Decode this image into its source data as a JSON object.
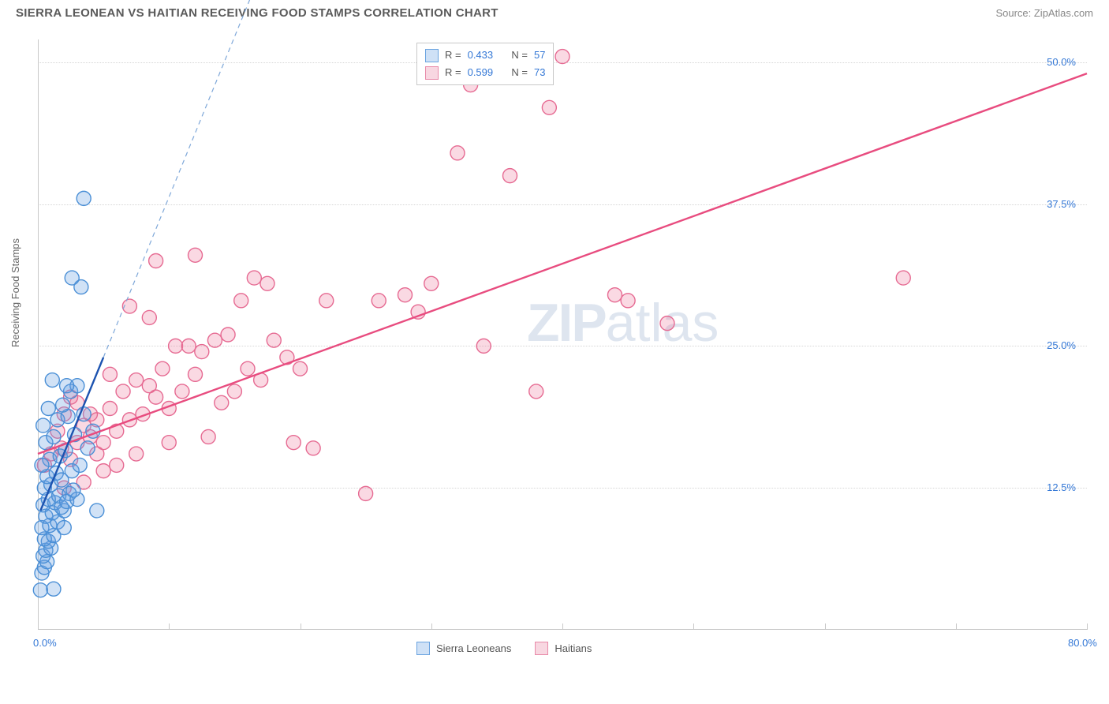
{
  "title": "SIERRA LEONEAN VS HAITIAN RECEIVING FOOD STAMPS CORRELATION CHART",
  "source": "Source: ZipAtlas.com",
  "watermark": {
    "bold": "ZIP",
    "rest": "atlas"
  },
  "y_axis_label": "Receiving Food Stamps",
  "stats": {
    "series1": {
      "r_label": "R =",
      "r": "0.433",
      "n_label": "N =",
      "n": "57"
    },
    "series2": {
      "r_label": "R =",
      "r": "0.599",
      "n_label": "N =",
      "n": "73"
    }
  },
  "legend": {
    "series1_label": "Sierra Leoneans",
    "series2_label": "Haitians"
  },
  "colors": {
    "series1_fill": "rgba(102,158,224,0.30)",
    "series1_stroke": "#4a8fd6",
    "series1_trend": "#1c53b0",
    "series1_trend_dash": "#7fa8d9",
    "series2_fill": "rgba(236,120,155,0.28)",
    "series2_stroke": "#e66a92",
    "series2_trend": "#e84c7f",
    "axis_label": "#3478d6",
    "grid": "#d6d6d6",
    "text": "#666666",
    "swatch1_fill": "#cfe1f6",
    "swatch1_border": "#6aa3e0",
    "swatch2_fill": "#f8d7e1",
    "swatch2_border": "#e88aa9"
  },
  "chart": {
    "type": "scatter",
    "xlim": [
      0,
      80
    ],
    "ylim": [
      0,
      52
    ],
    "x_ticks": [
      0,
      10,
      20,
      30,
      40,
      50,
      60,
      70,
      80
    ],
    "x_tick_labels": {
      "0": "0.0%",
      "80": "80.0%"
    },
    "y_grid": [
      12.5,
      25.0,
      37.5,
      50.0
    ],
    "y_tick_labels": [
      "12.5%",
      "25.0%",
      "37.5%",
      "50.0%"
    ],
    "marker_radius": 9,
    "marker_stroke_width": 1.4,
    "trend_width_solid": 2.4,
    "trend_width_dash": 1.2
  },
  "series1_points": [
    [
      0.2,
      3.5
    ],
    [
      1.2,
      3.6
    ],
    [
      0.3,
      5.0
    ],
    [
      0.5,
      5.5
    ],
    [
      0.7,
      6.0
    ],
    [
      0.4,
      6.5
    ],
    [
      0.6,
      7.0
    ],
    [
      1.0,
      7.2
    ],
    [
      0.8,
      7.8
    ],
    [
      0.5,
      8.0
    ],
    [
      1.2,
      8.3
    ],
    [
      0.3,
      9.0
    ],
    [
      0.9,
      9.2
    ],
    [
      1.5,
      9.5
    ],
    [
      0.6,
      10.0
    ],
    [
      1.1,
      10.3
    ],
    [
      2.0,
      10.5
    ],
    [
      0.4,
      11.0
    ],
    [
      1.3,
      11.2
    ],
    [
      0.8,
      11.5
    ],
    [
      1.6,
      11.8
    ],
    [
      2.4,
      12.0
    ],
    [
      0.5,
      12.5
    ],
    [
      1.0,
      12.8
    ],
    [
      1.8,
      10.8
    ],
    [
      2.2,
      11.3
    ],
    [
      3.0,
      11.5
    ],
    [
      0.7,
      13.5
    ],
    [
      1.4,
      13.8
    ],
    [
      2.6,
      14.0
    ],
    [
      0.9,
      15.0
    ],
    [
      1.7,
      15.3
    ],
    [
      2.1,
      15.8
    ],
    [
      3.2,
      14.5
    ],
    [
      0.6,
      16.5
    ],
    [
      1.2,
      17.0
    ],
    [
      2.8,
      17.2
    ],
    [
      0.4,
      18.0
    ],
    [
      1.5,
      18.5
    ],
    [
      2.3,
      18.8
    ],
    [
      3.5,
      19.0
    ],
    [
      0.8,
      19.5
    ],
    [
      1.9,
      19.8
    ],
    [
      2.5,
      21.0
    ],
    [
      3.8,
      16.0
    ],
    [
      4.2,
      17.5
    ],
    [
      3.0,
      21.5
    ],
    [
      1.1,
      22.0
    ],
    [
      2.0,
      9.0
    ],
    [
      0.3,
      14.5
    ],
    [
      1.8,
      13.2
    ],
    [
      2.7,
      12.3
    ],
    [
      4.5,
      10.5
    ],
    [
      3.3,
      30.2
    ],
    [
      2.6,
      31.0
    ],
    [
      3.5,
      38.0
    ],
    [
      2.2,
      21.5
    ]
  ],
  "series2_points": [
    [
      0.5,
      14.5
    ],
    [
      1.0,
      15.5
    ],
    [
      1.8,
      16.0
    ],
    [
      2.5,
      15.0
    ],
    [
      3.0,
      16.5
    ],
    [
      4.0,
      17.0
    ],
    [
      5.0,
      16.5
    ],
    [
      3.5,
      18.0
    ],
    [
      4.5,
      18.5
    ],
    [
      6.0,
      17.5
    ],
    [
      2.0,
      19.0
    ],
    [
      5.5,
      19.5
    ],
    [
      7.0,
      18.5
    ],
    [
      3.0,
      20.0
    ],
    [
      4.0,
      19.0
    ],
    [
      8.0,
      19.0
    ],
    [
      9.0,
      20.5
    ],
    [
      10.0,
      19.5
    ],
    [
      6.5,
      21.0
    ],
    [
      11.0,
      21.0
    ],
    [
      7.5,
      22.0
    ],
    [
      8.5,
      21.5
    ],
    [
      12.0,
      22.5
    ],
    [
      9.5,
      23.0
    ],
    [
      13.0,
      17.0
    ],
    [
      14.0,
      20.0
    ],
    [
      15.0,
      21.0
    ],
    [
      10.5,
      25.0
    ],
    [
      11.5,
      25.0
    ],
    [
      16.0,
      23.0
    ],
    [
      17.0,
      22.0
    ],
    [
      12.5,
      24.5
    ],
    [
      18.0,
      25.5
    ],
    [
      19.0,
      24.0
    ],
    [
      14.5,
      26.0
    ],
    [
      20.0,
      23.0
    ],
    [
      21.0,
      16.0
    ],
    [
      7.0,
      28.5
    ],
    [
      8.5,
      27.5
    ],
    [
      9.0,
      32.5
    ],
    [
      15.5,
      29.0
    ],
    [
      16.5,
      31.0
    ],
    [
      17.5,
      30.5
    ],
    [
      22.0,
      29.0
    ],
    [
      12.0,
      33.0
    ],
    [
      25.0,
      12.0
    ],
    [
      26.0,
      29.0
    ],
    [
      28.0,
      29.5
    ],
    [
      29.0,
      28.0
    ],
    [
      30.0,
      30.5
    ],
    [
      32.0,
      42.0
    ],
    [
      33.0,
      48.0
    ],
    [
      34.0,
      25.0
    ],
    [
      36.0,
      40.0
    ],
    [
      38.0,
      21.0
    ],
    [
      39.0,
      46.0
    ],
    [
      40.0,
      50.5
    ],
    [
      44.0,
      29.5
    ],
    [
      45.0,
      29.0
    ],
    [
      48.0,
      27.0
    ],
    [
      66.0,
      31.0
    ],
    [
      2.0,
      12.5
    ],
    [
      3.5,
      13.0
    ],
    [
      5.0,
      14.0
    ],
    [
      6.0,
      14.5
    ],
    [
      1.5,
      17.5
    ],
    [
      4.5,
      15.5
    ],
    [
      7.5,
      15.5
    ],
    [
      2.5,
      20.5
    ],
    [
      5.5,
      22.5
    ],
    [
      10.0,
      16.5
    ],
    [
      13.5,
      25.5
    ],
    [
      19.5,
      16.5
    ]
  ],
  "series1_trend": {
    "solid": [
      [
        0.2,
        10.5
      ],
      [
        5.0,
        24.0
      ]
    ],
    "dash": [
      [
        5.0,
        24.0
      ],
      [
        22.0,
        72.0
      ]
    ]
  },
  "series2_trend": {
    "solid": [
      [
        0,
        15.5
      ],
      [
        80,
        49.0
      ]
    ]
  }
}
